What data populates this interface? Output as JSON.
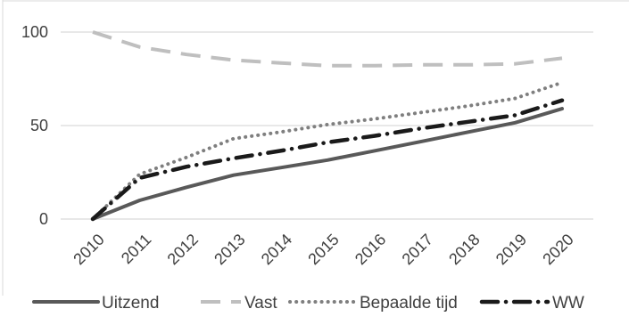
{
  "chart_data": {
    "type": "line",
    "title": "",
    "xlabel": "",
    "ylabel": "",
    "categories": [
      "2010",
      "2011",
      "2012",
      "2013",
      "2014",
      "2015",
      "2016",
      "2017",
      "2018",
      "2019",
      "2020"
    ],
    "ylim": [
      0,
      100
    ],
    "yticks": [
      0,
      50,
      100
    ],
    "grid": true,
    "legend_position": "bottom",
    "series": [
      {
        "name": "Uitzend",
        "values": [
          0,
          10,
          17,
          23.5,
          27.5,
          31.5,
          36.5,
          41.5,
          46.5,
          51.5,
          59
        ],
        "color": "#595959",
        "style": "solid"
      },
      {
        "name": "Vast",
        "values": [
          100,
          92,
          88,
          85,
          83.5,
          82,
          82,
          82.5,
          82.5,
          83,
          86
        ],
        "color": "#bfbfbf",
        "style": "long-dash"
      },
      {
        "name": "Bepaalde tijd",
        "values": [
          0,
          24,
          33,
          43,
          46.5,
          50.5,
          53.5,
          57,
          60.5,
          64.5,
          73
        ],
        "color": "#7f7f7f",
        "style": "dotted"
      },
      {
        "name": "WW",
        "values": [
          0,
          22,
          28,
          32.5,
          36.5,
          41,
          44.5,
          48.5,
          52,
          55.5,
          63.5
        ],
        "color": "#1a1a1a",
        "style": "dash-dot"
      }
    ]
  }
}
